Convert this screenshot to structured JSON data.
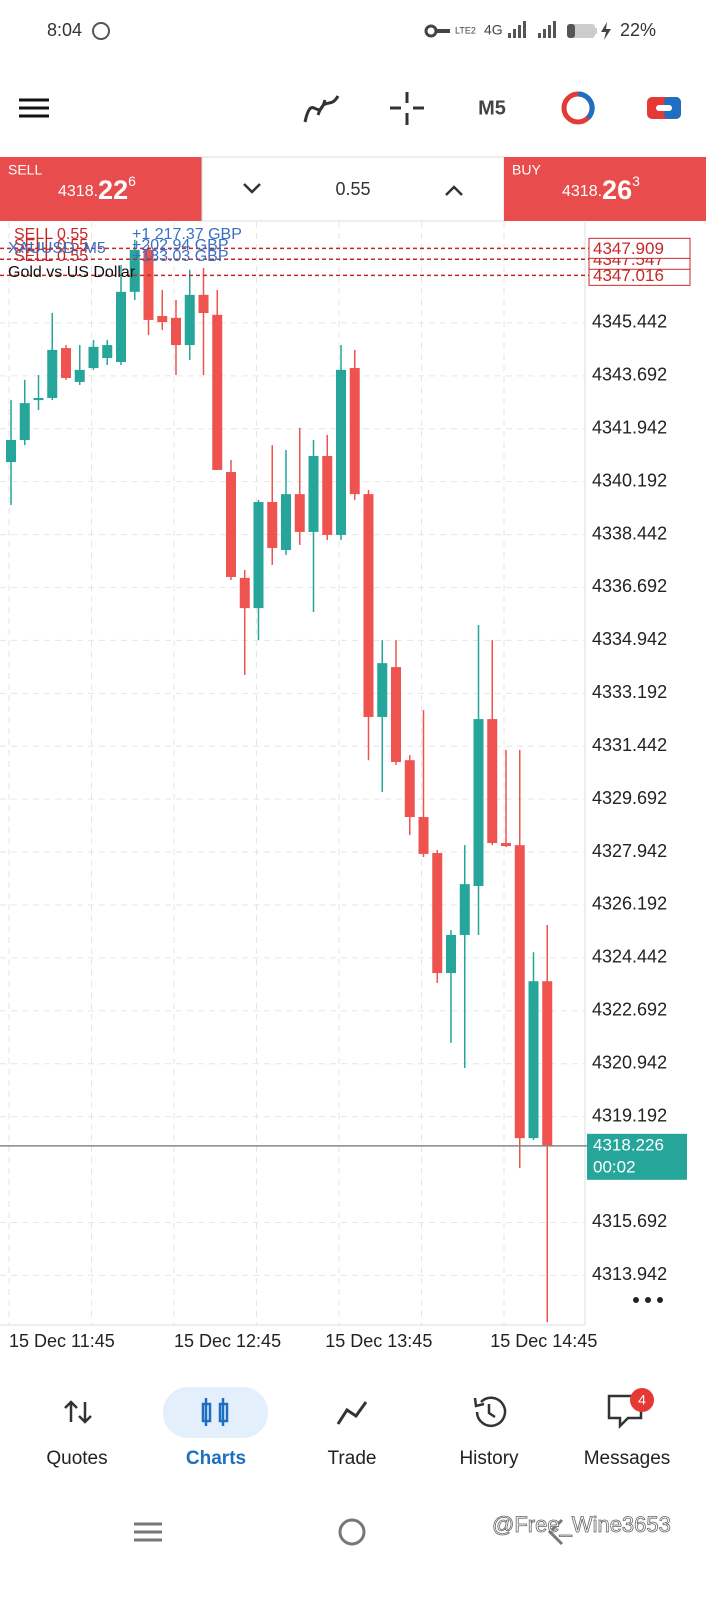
{
  "status_bar": {
    "time": "8:04",
    "volte": "LTE2",
    "network": "4G",
    "battery": "22%"
  },
  "toolbar": {
    "timeframe": "M5"
  },
  "trade_panel": {
    "sell": {
      "label": "SELL",
      "price_prefix": "4318.",
      "price_big": "22",
      "price_sup": "6"
    },
    "volume": "0.55",
    "buy": {
      "label": "BUY",
      "price_prefix": "4318.",
      "price_big": "26",
      "price_sup": "3"
    }
  },
  "chart_data": {
    "type": "candlestick",
    "symbol": "XAUUSD, M5",
    "description": "Gold vs US Dollar",
    "categories": [
      "15 Dec 11:45",
      null,
      null,
      null,
      null,
      null,
      null,
      null,
      null,
      null,
      null,
      null,
      "15 Dec 12:45",
      null,
      null,
      null,
      null,
      null,
      null,
      null,
      null,
      null,
      null,
      "15 Dec 13:45",
      null,
      null,
      null,
      null,
      null,
      null,
      null,
      null,
      null,
      null,
      null,
      "15 Dec 14:45",
      null,
      null,
      null,
      null
    ],
    "open": [
      4340.84,
      4341.57,
      4342.89,
      4342.96,
      4344.61,
      4343.49,
      4343.95,
      4344.28,
      4344.15,
      4346.47,
      4347.86,
      4345.67,
      4345.61,
      4344.71,
      4346.37,
      4345.71,
      4340.51,
      4337.01,
      4336.01,
      4339.52,
      4337.93,
      4339.78,
      4338.53,
      4341.04,
      4338.43,
      4343.95,
      4339.78,
      4332.41,
      4334.06,
      4330.98,
      4329.1,
      4327.91,
      4323.94,
      4325.2,
      4326.82,
      4332.34,
      4328.24,
      4328.17,
      4318.48,
      4323.67
    ],
    "high": [
      4342.89,
      4343.56,
      4343.72,
      4345.77,
      4344.71,
      4344.71,
      4344.88,
      4344.88,
      4347.36,
      4348.19,
      4348.02,
      4346.53,
      4346.2,
      4347.2,
      4347.26,
      4346.53,
      4340.91,
      4337.27,
      4339.59,
      4341.4,
      4341.24,
      4341.97,
      4341.57,
      4341.74,
      4344.71,
      4344.55,
      4339.92,
      4334.95,
      4334.95,
      4331.15,
      4332.64,
      4328.01,
      4325.36,
      4328.17,
      4335.45,
      4334.95,
      4331.32,
      4331.32,
      4324.63,
      4325.53
    ],
    "low": [
      4339.42,
      4341.4,
      4342.56,
      4342.89,
      4343.56,
      4343.39,
      4343.89,
      4344.05,
      4344.05,
      4346.2,
      4345.04,
      4345.21,
      4343.72,
      4344.22,
      4343.72,
      4340.58,
      4336.94,
      4333.8,
      4334.95,
      4337.44,
      4337.77,
      4338.1,
      4335.88,
      4338.26,
      4338.26,
      4339.59,
      4330.98,
      4329.93,
      4330.82,
      4328.5,
      4327.78,
      4323.61,
      4321.63,
      4320.8,
      4325.2,
      4328.17,
      4328.11,
      4317.49,
      4318.42,
      4312.39
    ],
    "close": [
      4341.57,
      4342.79,
      4342.96,
      4344.55,
      4343.62,
      4343.89,
      4344.65,
      4344.71,
      4346.47,
      4347.86,
      4345.54,
      4345.47,
      4344.71,
      4346.37,
      4345.77,
      4340.58,
      4337.04,
      4336.01,
      4339.52,
      4338.0,
      4339.78,
      4338.53,
      4341.04,
      4338.43,
      4343.89,
      4339.78,
      4332.41,
      4334.19,
      4330.92,
      4329.1,
      4327.88,
      4323.94,
      4325.2,
      4326.88,
      4332.34,
      4328.24,
      4328.14,
      4318.48,
      4323.67,
      4318.226
    ],
    "up_color": "#26a69a",
    "down_color": "#ef5350",
    "ylim": [
      4312.3,
      4348.78
    ],
    "yticks": [
      4345.442,
      4343.692,
      4341.942,
      4340.192,
      4338.442,
      4336.692,
      4334.942,
      4333.192,
      4331.442,
      4329.692,
      4327.942,
      4326.192,
      4324.442,
      4322.692,
      4320.942,
      4319.192,
      4315.692,
      4313.942
    ],
    "grid": true,
    "last_price": 4318.226,
    "countdown": "00:02",
    "orders": [
      {
        "label": "SELL 0.55",
        "profit": "+1 217.37 GBP",
        "price": 4347.909
      },
      {
        "label": "SELL 0.55",
        "profit": "+202.94 GBP",
        "price": 4347.547
      },
      {
        "label": "SELL 0.55",
        "profit": "+183.03 GBP",
        "price": 4347.016
      }
    ]
  },
  "nav": {
    "items": [
      "Quotes",
      "Charts",
      "Trade",
      "History",
      "Messages"
    ],
    "messages_badge": 4
  },
  "watermark": "@Free_Wine3653"
}
